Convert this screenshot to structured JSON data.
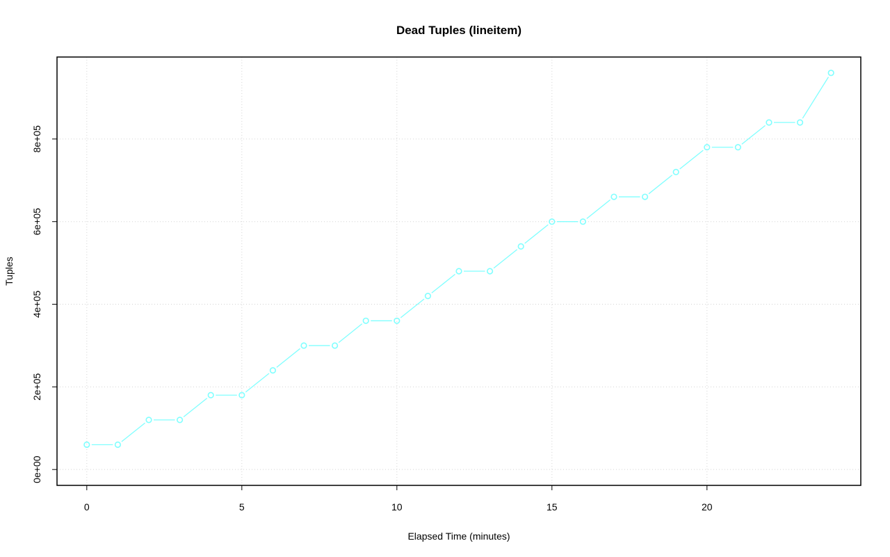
{
  "chart_data": {
    "type": "line",
    "title": "Dead Tuples (lineitem)",
    "xlabel": "Elapsed Time (minutes)",
    "ylabel": "Tuples",
    "x": [
      0,
      1,
      2,
      3,
      4,
      5,
      6,
      7,
      8,
      9,
      10,
      11,
      12,
      13,
      14,
      15,
      16,
      17,
      18,
      19,
      20,
      21,
      22,
      23,
      24
    ],
    "series": [
      {
        "values": [
          60000,
          60000,
          120000,
          120000,
          180000,
          180000,
          240000,
          300000,
          300000,
          360000,
          360000,
          420000,
          480000,
          480000,
          540000,
          600000,
          600000,
          660000,
          660000,
          720000,
          780000,
          780000,
          840000,
          840000,
          960000
        ],
        "color": "#80ffff",
        "marker": "open-circle"
      }
    ],
    "xlim": [
      -0.96,
      24.96
    ],
    "ylim": [
      -38400,
      998400
    ],
    "xticks": [
      0,
      5,
      10,
      15,
      20
    ],
    "xtick_labels": [
      "0",
      "5",
      "10",
      "15",
      "20"
    ],
    "yticks": [
      0,
      200000,
      400000,
      600000,
      800000
    ],
    "ytick_labels": [
      "0e+00",
      "2e+05",
      "4e+05",
      "6e+05",
      "8e+05"
    ],
    "grid": true,
    "grid_color": "#d3d3d3"
  }
}
